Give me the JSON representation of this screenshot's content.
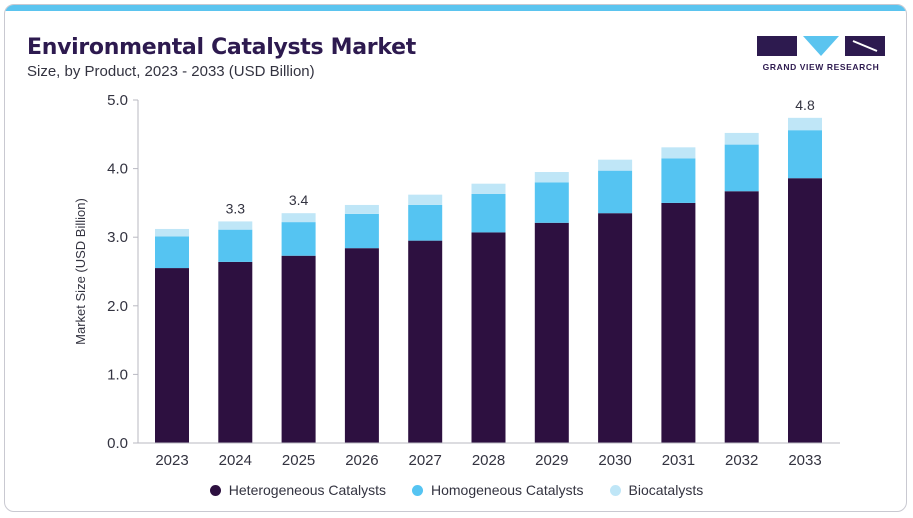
{
  "header": {
    "title": "Environmental Catalysts Market",
    "subtitle": "Size, by Product, 2023 - 2033 (USD Billion)"
  },
  "brand": {
    "name": "GRAND VIEW RESEARCH",
    "colors": {
      "dark": "#2d1a4f",
      "accent": "#5bc4ef"
    }
  },
  "chart_data": {
    "type": "bar",
    "stacked": true,
    "categories": [
      "2023",
      "2024",
      "2025",
      "2026",
      "2027",
      "2028",
      "2029",
      "2030",
      "2031",
      "2032",
      "2033"
    ],
    "series": [
      {
        "name": "Heterogeneous Catalysts",
        "color": "#2d1040",
        "values": [
          2.55,
          2.64,
          2.73,
          2.84,
          2.95,
          3.07,
          3.21,
          3.35,
          3.5,
          3.67,
          3.86
        ]
      },
      {
        "name": "Homogeneous Catalysts",
        "color": "#55c4f2",
        "values": [
          0.46,
          0.47,
          0.49,
          0.5,
          0.52,
          0.56,
          0.59,
          0.62,
          0.65,
          0.68,
          0.7
        ]
      },
      {
        "name": "Biocatalysts",
        "color": "#bfe6f7",
        "values": [
          0.11,
          0.12,
          0.13,
          0.13,
          0.15,
          0.15,
          0.15,
          0.16,
          0.16,
          0.17,
          0.18
        ]
      }
    ],
    "total_labels": {
      "2024": "3.3",
      "2025": "3.4",
      "2033": "4.8"
    },
    "ylabel": "Market Size (USD Billion)",
    "xlabel": "",
    "ylim": [
      0,
      5
    ],
    "yticks": [
      "0.0",
      "1.0",
      "2.0",
      "3.0",
      "4.0",
      "5.0"
    ],
    "grid": false,
    "legend_position": "bottom"
  }
}
